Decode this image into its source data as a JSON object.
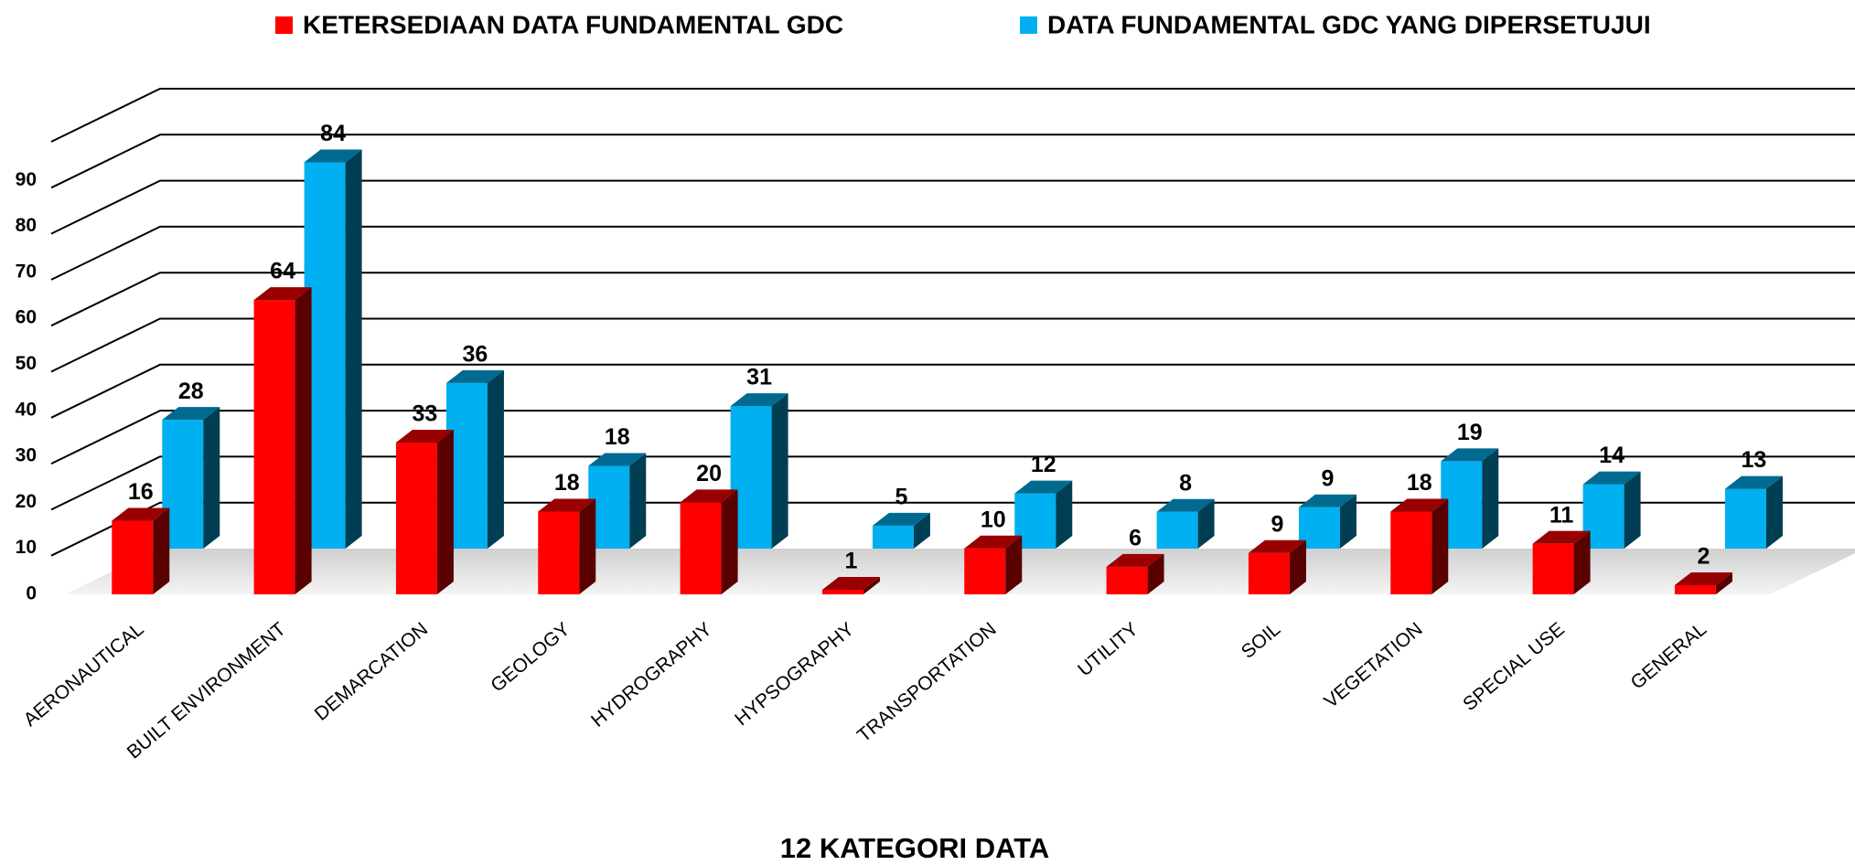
{
  "chart_data": {
    "type": "bar3d",
    "x_label": "12 KATEGORI DATA",
    "categories": [
      "AERONAUTICAL",
      "BUILT ENVIRONMENT",
      "DEMARCATION",
      "GEOLOGY",
      "HYDROGRAPHY",
      "HYPSOGRAPHY",
      "TRANSPORTATION",
      "UTILITY",
      "SOIL",
      "VEGETATION",
      "SPECIAL USE",
      "GENERAL"
    ],
    "series": [
      {
        "name": "KETERSEDIAAN DATA FUNDAMENTAL GDC",
        "color": "#ff0000",
        "values": [
          16,
          64,
          33,
          18,
          20,
          1,
          10,
          6,
          9,
          18,
          11,
          2
        ]
      },
      {
        "name": "DATA FUNDAMENTAL GDC YANG DIPERSETUJUI",
        "color": "#00b0f0",
        "values": [
          28,
          84,
          36,
          18,
          31,
          5,
          12,
          8,
          9,
          19,
          14,
          13
        ]
      }
    ],
    "ylim": [
      0,
      100
    ],
    "yticks": [
      0,
      10,
      20,
      30,
      40,
      50,
      60,
      70,
      80,
      90
    ],
    "grid": true,
    "legend": "top"
  }
}
